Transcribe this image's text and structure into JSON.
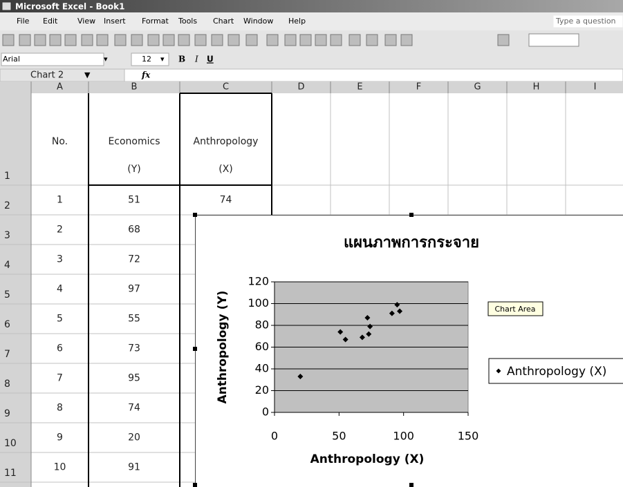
{
  "window": {
    "title": "Microsoft Excel - Book1"
  },
  "menu": {
    "items": [
      "File",
      "Edit",
      "View",
      "Insert",
      "Format",
      "Tools",
      "Chart",
      "Window",
      "Help"
    ],
    "help_box": "Type a question"
  },
  "format_bar": {
    "font": "Arial",
    "size": "12"
  },
  "formula_bar": {
    "name_box": "Chart 2",
    "function": "fx"
  },
  "columns": [
    "A",
    "B",
    "C",
    "D",
    "E",
    "F",
    "G",
    "H",
    "I"
  ],
  "row_numbers": [
    "1",
    "2",
    "3",
    "4",
    "5",
    "6",
    "7",
    "8",
    "9",
    "10",
    "11"
  ],
  "table": {
    "header": [
      [
        "No."
      ],
      [
        "Economics",
        "(Y)"
      ],
      [
        "Anthropology",
        "(X)"
      ]
    ],
    "rows": [
      [
        1,
        51,
        74
      ],
      [
        2,
        68
      ],
      [
        3,
        72
      ],
      [
        4,
        97
      ],
      [
        5,
        55
      ],
      [
        6,
        73
      ],
      [
        7,
        95
      ],
      [
        8,
        74
      ],
      [
        9,
        20
      ],
      [
        10,
        91
      ]
    ]
  },
  "tooltip": "Chart Area",
  "chart_data": {
    "type": "scatter",
    "title": "แผนภาพการกระจาย",
    "x_label": "Anthropology (X)",
    "y_label": "Anthropology (Y)",
    "x": [
      51,
      68,
      72,
      97,
      55,
      73,
      95,
      74,
      20,
      91
    ],
    "series": [
      {
        "name": "Anthropology (X)",
        "color": "#000000",
        "values": [
          74,
          69,
          87,
          93,
          67,
          72,
          99,
          79,
          33,
          91
        ]
      }
    ],
    "xlim": [
      0,
      150
    ],
    "xticks": [
      0,
      50,
      100,
      150
    ],
    "ylim": [
      0,
      120
    ],
    "yticks": [
      0,
      20,
      40,
      60,
      80,
      100,
      120
    ],
    "grid": true,
    "legend": "right"
  }
}
